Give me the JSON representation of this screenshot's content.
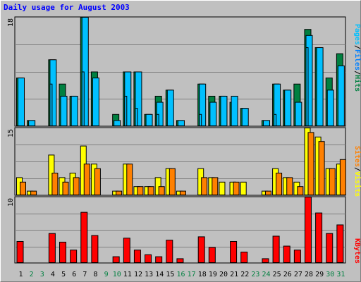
{
  "title": "Daily usage for August 2003",
  "colors": {
    "hits": "#008040",
    "files": "#00c0ff",
    "pages": "#00c0ff",
    "visits": "#ffff00",
    "sites": "#ff8000",
    "kbytes": "#ff0000",
    "weekday_label": "#000000",
    "weekend_label": "#008040",
    "panel_bg": "#c0c0c0",
    "grid": "#808080"
  },
  "legend": {
    "pages": "Pages",
    "files": "Files",
    "hits": "Hits",
    "sites": "Sites",
    "visits": "Visits",
    "kbytes": "KBytes",
    "sep": "/"
  },
  "chart_data": [
    {
      "type": "bar",
      "panel": "hits-files-pages",
      "x": [
        "1",
        "2",
        "3",
        "4",
        "5",
        "6",
        "7",
        "8",
        "9",
        "10",
        "11",
        "12",
        "13",
        "14",
        "15",
        "16",
        "17",
        "18",
        "19",
        "20",
        "21",
        "22",
        "23",
        "24",
        "25",
        "26",
        "27",
        "28",
        "29",
        "30",
        "31"
      ],
      "ymax_label": "18",
      "ylim": [
        0,
        18
      ],
      "series": [
        {
          "name": "Hits",
          "values": [
            8,
            1,
            0,
            11,
            7,
            5,
            18,
            9,
            0,
            2,
            9,
            9,
            2,
            5,
            6,
            1,
            0,
            7,
            5,
            5,
            4,
            3,
            0,
            1,
            7,
            6,
            7,
            16,
            13,
            8,
            12
          ]
        },
        {
          "name": "Files",
          "values": [
            8,
            1,
            0,
            11,
            5,
            5,
            18,
            8,
            0,
            1,
            9,
            9,
            2,
            4,
            6,
            1,
            0,
            7,
            4,
            5,
            5,
            3,
            0,
            1,
            7,
            6,
            4,
            15,
            13,
            6,
            10
          ]
        },
        {
          "name": "Pages",
          "values": [
            0,
            0,
            0,
            7,
            0,
            0,
            9,
            0,
            0,
            0,
            5,
            3,
            0,
            2,
            0,
            0,
            0,
            2,
            0,
            0,
            0,
            0,
            0,
            0,
            2,
            0,
            0,
            13,
            0,
            0,
            0
          ]
        }
      ]
    },
    {
      "type": "bar",
      "panel": "visits-sites",
      "x": [
        "1",
        "2",
        "3",
        "4",
        "5",
        "6",
        "7",
        "8",
        "9",
        "10",
        "11",
        "12",
        "13",
        "14",
        "15",
        "16",
        "17",
        "18",
        "19",
        "20",
        "21",
        "22",
        "23",
        "24",
        "25",
        "26",
        "27",
        "28",
        "29",
        "30",
        "31"
      ],
      "ymax_label": "15",
      "ylim": [
        0,
        15
      ],
      "series": [
        {
          "name": "Visits",
          "values": [
            4,
            1,
            0,
            9,
            4,
            5,
            11,
            7,
            0,
            1,
            7,
            2,
            2,
            4,
            6,
            1,
            0,
            6,
            4,
            3,
            3,
            3,
            0,
            1,
            6,
            4,
            3,
            15,
            13,
            6,
            7
          ]
        },
        {
          "name": "Sites",
          "values": [
            3,
            1,
            0,
            5,
            3,
            4,
            7,
            6,
            0,
            1,
            7,
            2,
            2,
            2,
            6,
            1,
            0,
            4,
            4,
            0,
            3,
            0,
            0,
            1,
            5,
            4,
            2,
            14,
            12,
            6,
            8
          ]
        }
      ]
    },
    {
      "type": "bar",
      "panel": "kbytes",
      "x": [
        "1",
        "2",
        "3",
        "4",
        "5",
        "6",
        "7",
        "8",
        "9",
        "10",
        "11",
        "12",
        "13",
        "14",
        "15",
        "16",
        "17",
        "18",
        "19",
        "20",
        "21",
        "22",
        "23",
        "24",
        "25",
        "26",
        "27",
        "28",
        "29",
        "30",
        "31"
      ],
      "ymax_label": "10",
      "ylim": [
        0,
        10
      ],
      "series": [
        {
          "name": "KBytes",
          "values": [
            3.3,
            0,
            0,
            4.5,
            3.2,
            2.0,
            7.7,
            4.2,
            0,
            1.0,
            3.8,
            2.0,
            1.3,
            1.0,
            3.5,
            0.7,
            0,
            4.0,
            2.4,
            0,
            3.3,
            1.7,
            0,
            0.7,
            4.1,
            2.6,
            2.0,
            10,
            7.6,
            4.5,
            5.8
          ]
        }
      ]
    }
  ]
}
